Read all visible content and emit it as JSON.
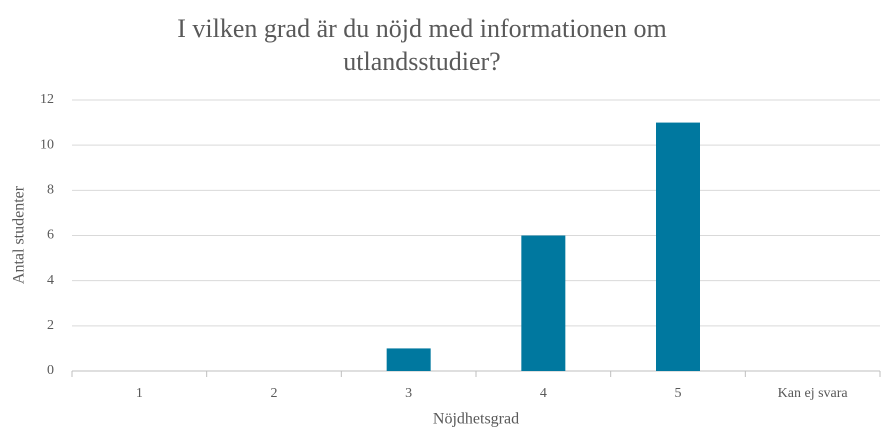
{
  "chart_data": {
    "type": "bar",
    "title": "I vilken grad är du nöjd med informationen om utlandsstudier?",
    "x_label": "Nöjdhetsgrad",
    "y_label": "Antal studenter",
    "categories": [
      "1",
      "2",
      "3",
      "4",
      "5",
      "Kan ej svara"
    ],
    "values": [
      0,
      0,
      1,
      6,
      11,
      0
    ],
    "color": "#00789f",
    "ylim": [
      0,
      12
    ],
    "yticks": [
      0,
      2,
      4,
      6,
      8,
      10,
      12
    ],
    "grid": true
  }
}
